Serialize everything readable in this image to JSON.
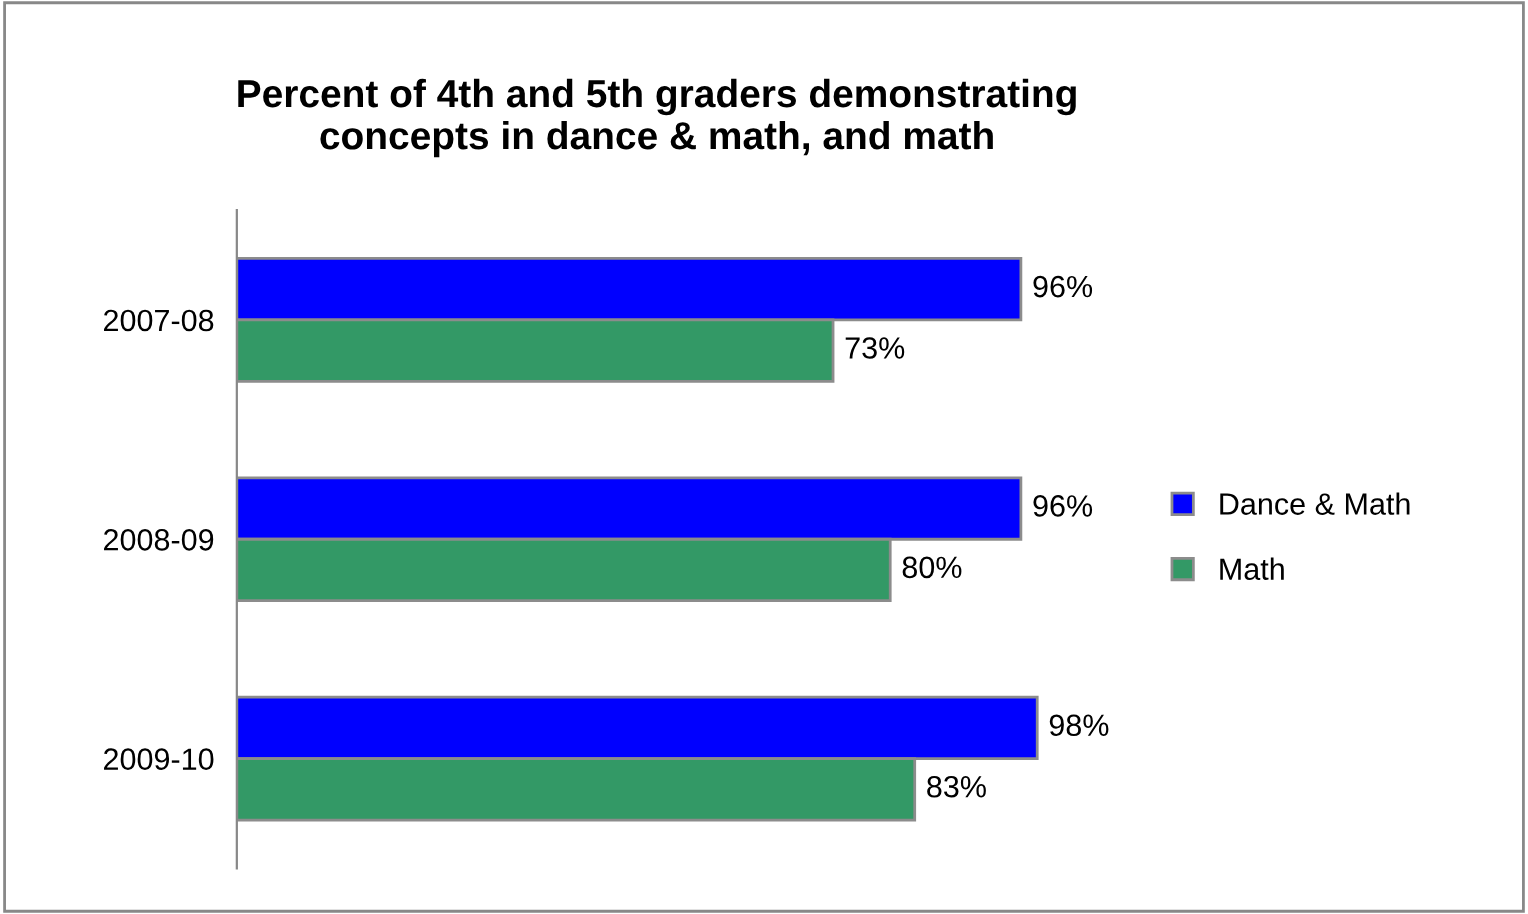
{
  "chart_data": {
    "type": "bar",
    "orientation": "horizontal",
    "title": "Percent of 4th and 5th graders demonstrating\nconcepts in dance & math, and math",
    "categories": [
      "2007-08",
      "2008-09",
      "2009-10"
    ],
    "series": [
      {
        "name": "Dance & Math",
        "color": "#0000ff",
        "values": [
          96,
          96,
          98
        ],
        "value_labels": [
          "96%",
          "96%",
          "98%"
        ]
      },
      {
        "name": "Math",
        "color": "#339966",
        "values": [
          73,
          80,
          83
        ],
        "value_labels": [
          "73%",
          "80%",
          "83%"
        ]
      }
    ],
    "legend": "right",
    "grid": false
  }
}
